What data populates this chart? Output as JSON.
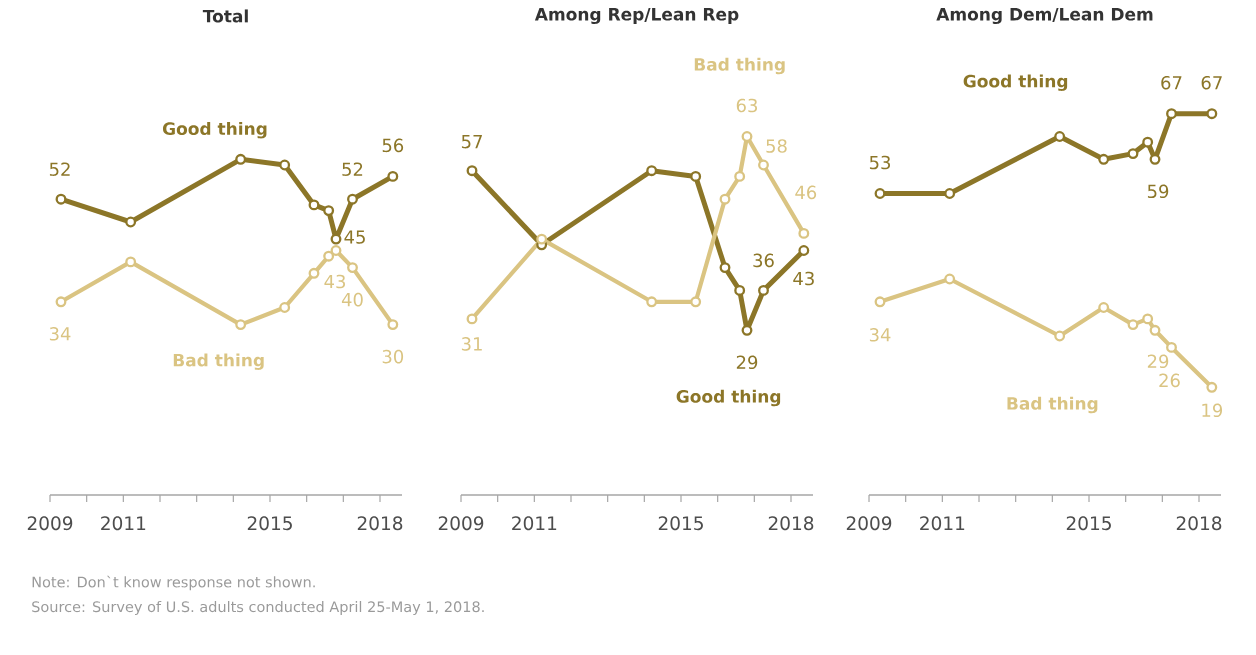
{
  "chart_data": [
    {
      "type": "line",
      "title": "Total",
      "x": [
        2009.3,
        2011.2,
        2014.2,
        2015.4,
        2016.2,
        2016.6,
        2016.8,
        2017.25,
        2018.35
      ],
      "xlim": [
        2009,
        2018.6
      ],
      "xticks": [
        2009,
        {
          "value": 2010,
          "label": null
        },
        2011,
        {
          "value": 2012,
          "label": null
        },
        {
          "value": 2013,
          "label": null
        },
        {
          "value": 2014,
          "label": null
        },
        2015,
        {
          "value": 2016,
          "label": null
        },
        {
          "value": 2017,
          "label": null
        },
        2018
      ],
      "tick_labels": "x",
      "marker": "circle",
      "series": [
        {
          "name": "Good thing",
          "color": "#8c7628",
          "values": [
            52,
            48,
            59,
            58,
            51,
            50,
            45,
            52,
            56
          ],
          "value_labels": [
            "52",
            null,
            null,
            null,
            null,
            null,
            "45",
            "52",
            "56"
          ]
        },
        {
          "name": "Bad thing",
          "color": "#dac482",
          "values": [
            34,
            41,
            30,
            33,
            39,
            42,
            43,
            40,
            30
          ],
          "value_labels": [
            "34",
            null,
            null,
            null,
            null,
            null,
            "43",
            "40",
            "30"
          ]
        }
      ],
      "annotations": [
        "Note: Don`t know response not shown.",
        "Source: Survey of U.S. adults conducted April 25-May 1, 2018."
      ]
    },
    {
      "type": "line",
      "title": "Among Rep/Lean Rep",
      "x": [
        2009.3,
        2011.2,
        2014.2,
        2015.4,
        2016.2,
        2016.6,
        2016.8,
        2017.25,
        2018.35
      ],
      "xlim": [
        2009,
        2018.6
      ],
      "xticks": [
        2009,
        {
          "value": 2010,
          "label": null
        },
        2011,
        {
          "value": 2012,
          "label": null
        },
        {
          "value": 2013,
          "label": null
        },
        {
          "value": 2014,
          "label": null
        },
        2015,
        {
          "value": 2016,
          "label": null
        },
        {
          "value": 2017,
          "label": null
        },
        2018
      ],
      "tick_labels": "x",
      "marker": "circle",
      "series": [
        {
          "name": "Good thing",
          "color": "#8c7628",
          "values": [
            57,
            44,
            57,
            56,
            40,
            36,
            29,
            36,
            43
          ],
          "value_labels": [
            "57",
            null,
            null,
            null,
            null,
            null,
            "29",
            "36",
            "43"
          ]
        },
        {
          "name": "Bad thing",
          "color": "#dac482",
          "values": [
            31,
            45,
            34,
            34,
            52,
            56,
            63,
            58,
            46
          ],
          "value_labels": [
            "31",
            null,
            null,
            null,
            null,
            null,
            "63",
            "58",
            "46"
          ]
        }
      ]
    },
    {
      "type": "line",
      "title": "Among Dem/Lean Dem",
      "x": [
        2009.3,
        2011.2,
        2014.2,
        2015.4,
        2016.2,
        2016.6,
        2016.8,
        2017.25,
        2018.35
      ],
      "xlim": [
        2009,
        2018.6
      ],
      "xticks": [
        2009,
        {
          "value": 2010,
          "label": null
        },
        2011,
        {
          "value": 2012,
          "label": null
        },
        {
          "value": 2013,
          "label": null
        },
        {
          "value": 2014,
          "label": null
        },
        2015,
        {
          "value": 2016,
          "label": null
        },
        {
          "value": 2017,
          "label": null
        },
        2018
      ],
      "tick_labels": "x",
      "marker": "circle",
      "series": [
        {
          "name": "Good thing",
          "color": "#8c7628",
          "values": [
            53,
            53,
            63,
            59,
            60,
            62,
            59,
            67,
            67
          ],
          "value_labels": [
            "53",
            null,
            null,
            null,
            null,
            null,
            "59",
            "67",
            "67"
          ]
        },
        {
          "name": "Bad thing",
          "color": "#dac482",
          "values": [
            34,
            38,
            28,
            33,
            30,
            31,
            29,
            26,
            19
          ],
          "value_labels": [
            "34",
            null,
            null,
            null,
            null,
            null,
            "29",
            "26",
            "19"
          ]
        }
      ]
    }
  ]
}
